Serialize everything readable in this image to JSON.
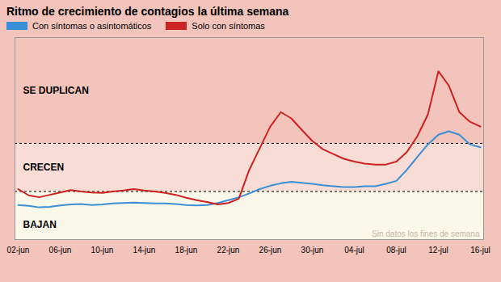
{
  "chart_data": {
    "type": "line",
    "title": "Ritmo de crecimiento de contagios la última semana",
    "categories": [
      "02-jun",
      null,
      null,
      null,
      "06-jun",
      null,
      null,
      null,
      "10-jun",
      null,
      null,
      null,
      "14-jun",
      null,
      null,
      null,
      "18-jun",
      null,
      null,
      null,
      "22-jun",
      null,
      null,
      null,
      "26-jun",
      null,
      null,
      null,
      "30-jun",
      null,
      null,
      null,
      "04-jul",
      null,
      null,
      null,
      "08-jul",
      null,
      null,
      null,
      "12-jul",
      null,
      null,
      null,
      "16-jul"
    ],
    "series": [
      {
        "name": "Con síntomas o asintomáticos",
        "color": "#3b8fd4",
        "values": [
          0.72,
          0.7,
          0.67,
          0.68,
          0.71,
          0.73,
          0.74,
          0.72,
          0.73,
          0.75,
          0.76,
          0.77,
          0.76,
          0.75,
          0.75,
          0.74,
          0.72,
          0.71,
          0.72,
          0.76,
          0.82,
          0.88,
          0.96,
          1.05,
          1.12,
          1.17,
          1.2,
          1.18,
          1.16,
          1.13,
          1.11,
          1.09,
          1.09,
          1.11,
          1.11,
          1.16,
          1.22,
          1.45,
          1.72,
          1.98,
          2.18,
          2.25,
          2.18,
          1.98,
          1.92
        ]
      },
      {
        "name": "Solo con síntomas",
        "color": "#cc2222",
        "values": [
          1.05,
          0.92,
          0.88,
          0.93,
          0.98,
          1.03,
          1.0,
          0.98,
          0.97,
          1.0,
          1.02,
          1.05,
          1.02,
          1.0,
          0.97,
          0.93,
          0.87,
          0.82,
          0.78,
          0.73,
          0.76,
          0.85,
          1.45,
          1.9,
          2.35,
          2.65,
          2.52,
          2.28,
          2.05,
          1.88,
          1.78,
          1.68,
          1.62,
          1.58,
          1.56,
          1.56,
          1.62,
          1.82,
          2.15,
          2.6,
          3.5,
          3.2,
          2.65,
          2.45,
          2.35
        ]
      }
    ],
    "ylim": [
      0,
      4.2
    ],
    "zones": [
      {
        "label": "SE DUPLICAN",
        "from": 2.0,
        "to": 4.2,
        "color": "#f2c4bc"
      },
      {
        "label": "CRECEN",
        "from": 1.0,
        "to": 2.0,
        "color": "#f7ddd5"
      },
      {
        "label": "BAJAN",
        "from": 0,
        "to": 1.0,
        "color": "#faf8e8"
      }
    ],
    "reference_lines": [
      1.0,
      2.0
    ],
    "annotations": [
      {
        "text": "Sin datos los fines de semana",
        "color": "#c8b8a8"
      }
    ],
    "legend": "top-left",
    "grid": false,
    "tick_labels": "x"
  }
}
